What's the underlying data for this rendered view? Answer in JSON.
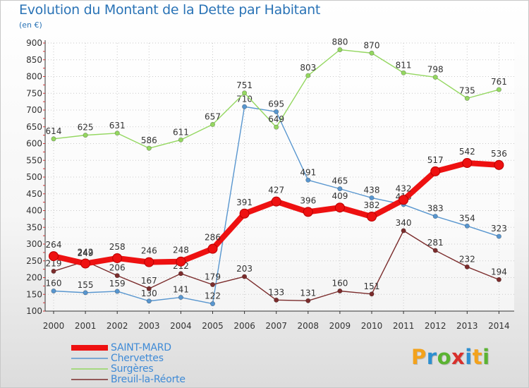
{
  "header": {
    "title": "Evolution du Montant de la Dette par Habitant",
    "subtitle": "(en €)"
  },
  "logo": {
    "letters": [
      "P",
      "r",
      "o",
      "x",
      "i",
      "t",
      "i"
    ],
    "colors": [
      "#f3a21c",
      "#2d8fd0",
      "#5bb332",
      "#d8302c",
      "#2d8fd0",
      "#f3a21c",
      "#5bb332"
    ]
  },
  "chart_data": {
    "type": "line",
    "x": [
      "2000",
      "2001",
      "2002",
      "2003",
      "2004",
      "2005",
      "2006",
      "2007",
      "2008",
      "2009",
      "2010",
      "2011",
      "2012",
      "2013",
      "2014"
    ],
    "ylim": [
      100,
      900
    ],
    "yticks": [
      "100",
      "150",
      "200",
      "250",
      "300",
      "350",
      "400",
      "450",
      "500",
      "550",
      "600",
      "650",
      "700",
      "750",
      "800",
      "850",
      "900"
    ],
    "grid": true,
    "legend_position": "bottom-left",
    "series": [
      {
        "name": "Chervettes",
        "color": "#5896cf",
        "values": [
          160,
          155,
          159,
          130,
          141,
          122,
          710,
          695,
          491,
          465,
          438,
          418,
          383,
          354,
          323
        ],
        "labels": [
          "160",
          "155",
          "159",
          "130",
          "141",
          "122",
          "710",
          "695",
          "491",
          "465",
          "438",
          "418",
          "383",
          "354",
          "323"
        ]
      },
      {
        "name": "Surgères",
        "color": "#94d760",
        "values": [
          614,
          625,
          631,
          586,
          611,
          657,
          751,
          649,
          803,
          880,
          870,
          811,
          798,
          735,
          761
        ],
        "labels": [
          "614",
          "625",
          "631",
          "586",
          "611",
          "657",
          "751",
          "649",
          "803",
          "880",
          "870",
          "811",
          "798",
          "735",
          "761"
        ]
      },
      {
        "name": "Breuil-la-Réorte",
        "color": "#7b2c2c",
        "values": [
          219,
          249,
          206,
          167,
          212,
          179,
          203,
          133,
          131,
          160,
          151,
          340,
          281,
          232,
          194
        ],
        "labels": [
          "219",
          "249",
          "206",
          "167",
          "212",
          "179",
          "203",
          "133",
          "131",
          "160",
          "151",
          "340",
          "281",
          "232",
          "194"
        ]
      },
      {
        "name": "SAINT-MARD",
        "color": "#ee1111",
        "values": [
          264,
          242,
          258,
          246,
          248,
          286,
          391,
          427,
          396,
          409,
          382,
          432,
          517,
          542,
          536
        ],
        "labels": [
          "264",
          "242",
          "258",
          "246",
          "248",
          "286",
          "391",
          "427",
          "396",
          "409",
          "382",
          "432",
          "517",
          "542",
          "536"
        ]
      }
    ]
  }
}
